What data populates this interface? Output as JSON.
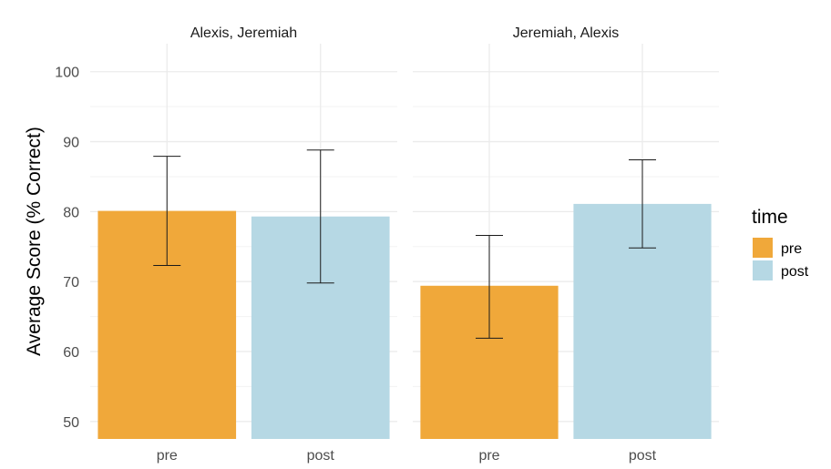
{
  "chart_data": {
    "type": "bar",
    "ylabel": "Average Score (% Correct)",
    "xlabel": "",
    "ylim": [
      47.5,
      104
    ],
    "yticks": [
      50,
      60,
      70,
      80,
      90,
      100
    ],
    "categories": [
      "pre",
      "post"
    ],
    "legend": {
      "title": "time",
      "position": "right",
      "items": [
        {
          "label": "pre",
          "color": "#F0A83A"
        },
        {
          "label": "post",
          "color": "#B6D8E4"
        }
      ]
    },
    "colors": {
      "pre": "#F0A83A",
      "post": "#B6D8E4"
    },
    "grid": true,
    "facets": [
      {
        "title": "Alexis, Jeremiah",
        "bars": [
          {
            "category": "pre",
            "value": 80.1,
            "lower": 72.3,
            "upper": 87.9
          },
          {
            "category": "post",
            "value": 79.3,
            "lower": 69.8,
            "upper": 88.8
          }
        ]
      },
      {
        "title": "Jeremiah, Alexis",
        "bars": [
          {
            "category": "pre",
            "value": 69.4,
            "lower": 61.9,
            "upper": 76.6
          },
          {
            "category": "post",
            "value": 81.1,
            "lower": 74.8,
            "upper": 87.4
          }
        ]
      }
    ]
  }
}
